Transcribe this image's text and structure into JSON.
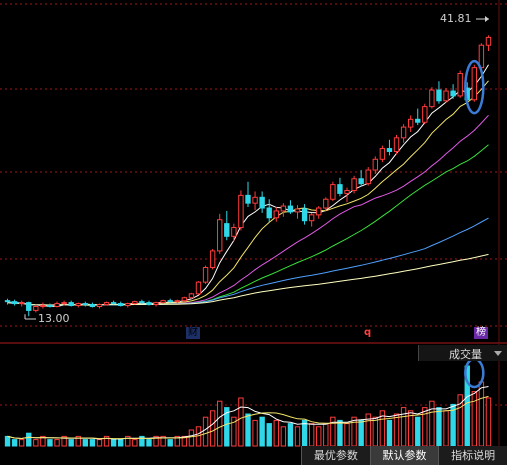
{
  "price_panel": {
    "high_label": "41.81",
    "low_label": "13.00",
    "markers": [
      {
        "text": "财",
        "color": "#4a78d8"
      },
      {
        "text": "q",
        "color": "#ff3b3b"
      },
      {
        "text": "榜",
        "color": "#b060e8"
      }
    ]
  },
  "volume_panel": {
    "indicator_label": "成交量"
  },
  "tabs": [
    {
      "label": "最优参数",
      "active": false
    },
    {
      "label": "默认参数",
      "active": true
    },
    {
      "label": "指标说明",
      "active": false
    }
  ],
  "colors": {
    "up": "#ff3c3c",
    "down": "#2fd8e8",
    "grid": "#a01818",
    "ma5": "#ffffff",
    "ma10": "#f2e46a",
    "ma20": "#e05ae6",
    "ma30": "#39e03a",
    "ma60": "#4fa0ff",
    "ma120": "#ffffc0",
    "highlight": "#3a7bd5"
  },
  "chart_data": [
    {
      "type": "candlestick",
      "title": "",
      "ylim": [
        12,
        44
      ],
      "annotations": [
        "41.81",
        "13.00"
      ],
      "ohlc": [
        [
          14.6,
          14.8,
          14.2,
          14.5
        ],
        [
          14.5,
          14.7,
          14.1,
          14.3
        ],
        [
          14.3,
          14.6,
          14.0,
          14.4
        ],
        [
          14.4,
          14.5,
          13.0,
          13.6
        ],
        [
          13.6,
          14.2,
          13.4,
          14.0
        ],
        [
          14.0,
          14.4,
          13.8,
          14.1
        ],
        [
          14.1,
          14.3,
          13.9,
          14.0
        ],
        [
          14.0,
          14.5,
          13.9,
          14.3
        ],
        [
          14.3,
          14.6,
          14.1,
          14.4
        ],
        [
          14.4,
          14.6,
          14.0,
          14.1
        ],
        [
          14.1,
          14.4,
          13.9,
          14.3
        ],
        [
          14.3,
          14.5,
          14.0,
          14.2
        ],
        [
          14.2,
          14.4,
          13.9,
          14.0
        ],
        [
          14.0,
          14.3,
          13.8,
          14.2
        ],
        [
          14.2,
          14.5,
          14.1,
          14.4
        ],
        [
          14.4,
          14.6,
          14.2,
          14.3
        ],
        [
          14.3,
          14.5,
          14.0,
          14.1
        ],
        [
          14.1,
          14.4,
          13.9,
          14.3
        ],
        [
          14.3,
          14.6,
          14.2,
          14.5
        ],
        [
          14.5,
          14.7,
          14.3,
          14.4
        ],
        [
          14.4,
          14.6,
          14.1,
          14.2
        ],
        [
          14.2,
          14.5,
          14.0,
          14.4
        ],
        [
          14.4,
          14.7,
          14.3,
          14.6
        ],
        [
          14.6,
          14.8,
          14.4,
          14.5
        ],
        [
          14.5,
          14.7,
          14.3,
          14.6
        ],
        [
          14.6,
          15.0,
          14.5,
          14.9
        ],
        [
          14.9,
          15.4,
          14.7,
          15.3
        ],
        [
          15.3,
          16.6,
          15.2,
          16.5
        ],
        [
          16.5,
          18.2,
          16.3,
          18.0
        ],
        [
          18.0,
          19.9,
          17.8,
          19.7
        ],
        [
          19.7,
          23.5,
          19.4,
          22.9
        ],
        [
          22.5,
          23.8,
          20.8,
          21.2
        ],
        [
          21.2,
          22.5,
          20.7,
          22.1
        ],
        [
          22.1,
          25.9,
          21.8,
          25.4
        ],
        [
          25.4,
          26.8,
          24.2,
          24.6
        ],
        [
          24.6,
          25.8,
          23.9,
          25.2
        ],
        [
          25.2,
          25.8,
          23.6,
          24.1
        ],
        [
          24.1,
          25.0,
          22.6,
          23.1
        ],
        [
          23.1,
          24.2,
          22.7,
          23.8
        ],
        [
          23.8,
          24.6,
          23.2,
          24.3
        ],
        [
          24.3,
          24.9,
          23.5,
          23.7
        ],
        [
          23.7,
          24.4,
          23.0,
          24.0
        ],
        [
          24.0,
          24.5,
          22.4,
          22.8
        ],
        [
          22.8,
          23.6,
          22.2,
          23.4
        ],
        [
          23.4,
          24.3,
          23.0,
          24.1
        ],
        [
          24.1,
          25.2,
          23.8,
          25.0
        ],
        [
          25.0,
          26.8,
          24.8,
          26.5
        ],
        [
          26.5,
          27.2,
          25.3,
          25.6
        ],
        [
          25.6,
          26.2,
          24.7,
          25.9
        ],
        [
          25.9,
          27.4,
          25.6,
          27.1
        ],
        [
          27.1,
          28.0,
          26.3,
          26.6
        ],
        [
          26.6,
          28.3,
          26.4,
          28.0
        ],
        [
          28.0,
          29.4,
          27.6,
          29.1
        ],
        [
          29.1,
          30.5,
          28.8,
          30.2
        ],
        [
          30.2,
          31.1,
          29.5,
          29.9
        ],
        [
          29.9,
          31.6,
          29.6,
          31.3
        ],
        [
          31.3,
          32.7,
          30.8,
          32.4
        ],
        [
          32.4,
          33.6,
          31.9,
          33.2
        ],
        [
          33.2,
          34.3,
          32.6,
          32.9
        ],
        [
          32.9,
          34.8,
          32.7,
          34.5
        ],
        [
          34.5,
          36.5,
          34.3,
          36.2
        ],
        [
          36.2,
          37.1,
          34.8,
          35.1
        ],
        [
          35.1,
          36.4,
          34.9,
          36.1
        ],
        [
          36.1,
          36.8,
          35.3,
          35.6
        ],
        [
          35.6,
          38.2,
          35.4,
          37.9
        ],
        [
          36.4,
          37.0,
          35.0,
          35.2
        ],
        [
          35.2,
          38.8,
          35.0,
          38.5
        ],
        [
          38.5,
          41.0,
          38.2,
          40.8
        ],
        [
          40.8,
          41.81,
          40.2,
          41.6
        ]
      ],
      "moving_averages": [
        "MA5",
        "MA10",
        "MA20",
        "MA30",
        "MA60",
        "MA120"
      ]
    },
    {
      "type": "bar",
      "title": "",
      "series": [
        {
          "values": [
            3,
            2,
            2,
            4,
            2,
            3,
            2,
            2,
            3,
            2,
            3,
            2,
            2,
            2,
            3,
            2,
            2,
            3,
            2,
            3,
            2,
            3,
            3,
            2,
            3,
            3,
            5,
            6,
            9,
            11,
            14,
            12,
            9,
            15,
            10,
            8,
            9,
            7,
            8,
            6,
            7,
            6,
            8,
            7,
            6,
            7,
            9,
            8,
            7,
            9,
            8,
            10,
            9,
            11,
            8,
            10,
            12,
            11,
            9,
            12,
            14,
            12,
            11,
            13,
            16,
            25,
            17,
            20,
            15
          ]
        }
      ]
    }
  ]
}
